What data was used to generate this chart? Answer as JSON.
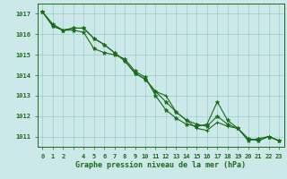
{
  "bg_color": "#cce8e8",
  "grid_color": "#99cccc",
  "line_color": "#1a6b1a",
  "marker_color": "#1a6b1a",
  "xlabel": "Graphe pression niveau de la mer (hPa)",
  "xlabel_color": "#1a6b1a",
  "ylim": [
    1010.5,
    1017.5
  ],
  "xlim": [
    -0.5,
    23.5
  ],
  "yticks": [
    1011,
    1012,
    1013,
    1014,
    1015,
    1016,
    1017
  ],
  "xtick_labels": [
    "0",
    "1",
    "2",
    "",
    "4",
    "5",
    "6",
    "7",
    "8",
    "9",
    "10",
    "11",
    "12",
    "13",
    "14",
    "15",
    "16",
    "17",
    "18",
    "19",
    "20",
    "21",
    "22",
    "23"
  ],
  "xtick_positions": [
    0,
    1,
    2,
    3,
    4,
    5,
    6,
    7,
    8,
    9,
    10,
    11,
    12,
    13,
    14,
    15,
    16,
    17,
    18,
    19,
    20,
    21,
    22,
    23
  ],
  "series1": [
    1017.1,
    1016.5,
    1016.2,
    1016.2,
    1016.1,
    1015.3,
    1015.1,
    1015.0,
    1014.8,
    1014.2,
    1013.9,
    1013.0,
    1012.3,
    1011.9,
    1011.6,
    1011.5,
    1011.6,
    1012.7,
    1011.8,
    1011.4,
    1010.8,
    1010.9,
    1011.0,
    1010.8
  ],
  "series2": [
    1017.1,
    1016.4,
    1016.2,
    1016.3,
    1016.3,
    1015.8,
    1015.5,
    1015.1,
    1014.7,
    1014.1,
    1013.8,
    1013.2,
    1012.7,
    1012.2,
    1011.8,
    1011.6,
    1011.5,
    1012.0,
    1011.6,
    1011.4,
    1010.9,
    1010.8,
    1011.0,
    1010.8
  ],
  "series3": [
    1017.1,
    1016.4,
    1016.2,
    1016.3,
    1016.3,
    1015.8,
    1015.5,
    1015.1,
    1014.7,
    1014.1,
    1013.8,
    1013.2,
    1013.0,
    1012.2,
    1011.8,
    1011.4,
    1011.3,
    1011.7,
    1011.5,
    1011.4,
    1010.9,
    1010.8,
    1011.0,
    1010.8
  ],
  "tick_fontsize": 5,
  "xlabel_fontsize": 6,
  "linewidth": 0.8,
  "markersize": 2.5
}
